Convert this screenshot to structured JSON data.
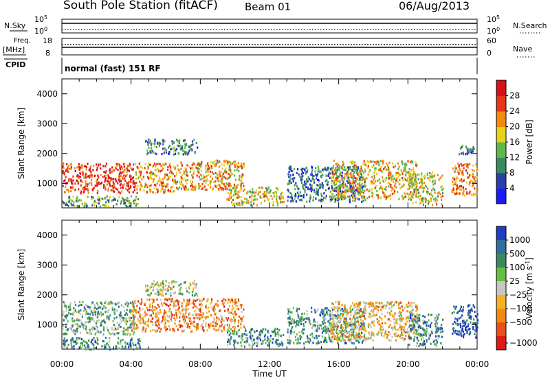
{
  "header": {
    "title": "South Pole Station (fitACF)",
    "beam": "Beam 01",
    "date": "06/Aug/2013"
  },
  "panels": {
    "nsky": {
      "label": "N.Sky",
      "tick_top": "10^5",
      "tick_bottom": "10^0"
    },
    "nsearch": {
      "label": "N.Search",
      "tick_top": "10^5",
      "tick_bottom": "10^0"
    },
    "freq": {
      "label_line1": "Freq.",
      "label_line2": "[MHz]",
      "tick_top": "18",
      "tick_bottom": "8"
    },
    "nave": {
      "label": "Nave",
      "tick_top": "60",
      "tick_bottom": "0"
    },
    "cpid": {
      "label": "CPID",
      "text": "normal (fast) 151 RF"
    }
  },
  "chart_data": [
    {
      "type": "heatmap",
      "name": "power",
      "ylabel": "Slant Range [km]",
      "ylim": [
        180,
        4500
      ],
      "yticks": [
        1000,
        2000,
        3000,
        4000
      ],
      "xlim": [
        0,
        24
      ],
      "colorbar_label": "Power [dB]",
      "colorbar_ticks": [
        "4",
        "8",
        "12",
        "16",
        "20",
        "24",
        "28"
      ],
      "colors": [
        "#1a1aff",
        "#2b3fa8",
        "#3a8a60",
        "#5fb84a",
        "#e8d21a",
        "#f08a10",
        "#e8351a",
        "#d8101a"
      ],
      "regions": [
        {
          "x": [
            0,
            4.2
          ],
          "y": [
            700,
            1700
          ],
          "level": 0.85
        },
        {
          "x": [
            0,
            4.5
          ],
          "y": [
            250,
            600
          ],
          "level": 0.4
        },
        {
          "x": [
            4.2,
            6.5
          ],
          "y": [
            700,
            1700
          ],
          "level": 0.7
        },
        {
          "x": [
            4.8,
            7.8
          ],
          "y": [
            2000,
            2500
          ],
          "level": 0.3
        },
        {
          "x": [
            6.5,
            10.5
          ],
          "y": [
            800,
            1800
          ],
          "level": 0.65
        },
        {
          "x": [
            9.5,
            12.8
          ],
          "y": [
            300,
            900
          ],
          "level": 0.55
        },
        {
          "x": [
            13.0,
            17.5
          ],
          "y": [
            400,
            1600
          ],
          "level": 0.25
        },
        {
          "x": [
            15.5,
            20.5
          ],
          "y": [
            500,
            1800
          ],
          "level": 0.6
        },
        {
          "x": [
            20.0,
            22.0
          ],
          "y": [
            300,
            1400
          ],
          "level": 0.55
        },
        {
          "x": [
            22.5,
            24
          ],
          "y": [
            600,
            1700
          ],
          "level": 0.7
        },
        {
          "x": [
            22.9,
            24
          ],
          "y": [
            2000,
            2300
          ],
          "level": 0.25
        }
      ]
    },
    {
      "type": "heatmap",
      "name": "velocity",
      "ylabel": "Slant Range [km]",
      "ylim": [
        180,
        4500
      ],
      "yticks": [
        1000,
        2000,
        3000,
        4000
      ],
      "xlim": [
        0,
        24
      ],
      "xticks": [
        "00:00",
        "04:00",
        "08:00",
        "12:00",
        "16:00",
        "20:00",
        "00:00"
      ],
      "xlabel": "Time UT",
      "colorbar_label": "Velocity [m s^-1]",
      "colorbar_ticks": [
        "1000",
        "500",
        "100",
        "25",
        "-25",
        "-100",
        "-500",
        "-1000"
      ],
      "colors": [
        "#1f3fbf",
        "#2f6f9f",
        "#3a8a60",
        "#66c040",
        "#c8c8c0",
        "#f6b020",
        "#f08a10",
        "#e8501a",
        "#e01818"
      ],
      "regions": [
        {
          "x": [
            0,
            4.2
          ],
          "y": [
            700,
            1800
          ],
          "level": 0.35
        },
        {
          "x": [
            0,
            4.5
          ],
          "y": [
            200,
            600
          ],
          "level": 0.25
        },
        {
          "x": [
            4.0,
            10.5
          ],
          "y": [
            800,
            1900
          ],
          "level": 0.7
        },
        {
          "x": [
            4.8,
            7.8
          ],
          "y": [
            2000,
            2500
          ],
          "level": 0.45
        },
        {
          "x": [
            9.5,
            12.8
          ],
          "y": [
            300,
            900
          ],
          "level": 0.3
        },
        {
          "x": [
            13.0,
            17.5
          ],
          "y": [
            400,
            1600
          ],
          "level": 0.3
        },
        {
          "x": [
            15.5,
            20.5
          ],
          "y": [
            500,
            1800
          ],
          "level": 0.6
        },
        {
          "x": [
            20.0,
            22.0
          ],
          "y": [
            300,
            1400
          ],
          "level": 0.25
        },
        {
          "x": [
            22.5,
            24
          ],
          "y": [
            600,
            1700
          ],
          "level": 0.1
        }
      ]
    }
  ]
}
